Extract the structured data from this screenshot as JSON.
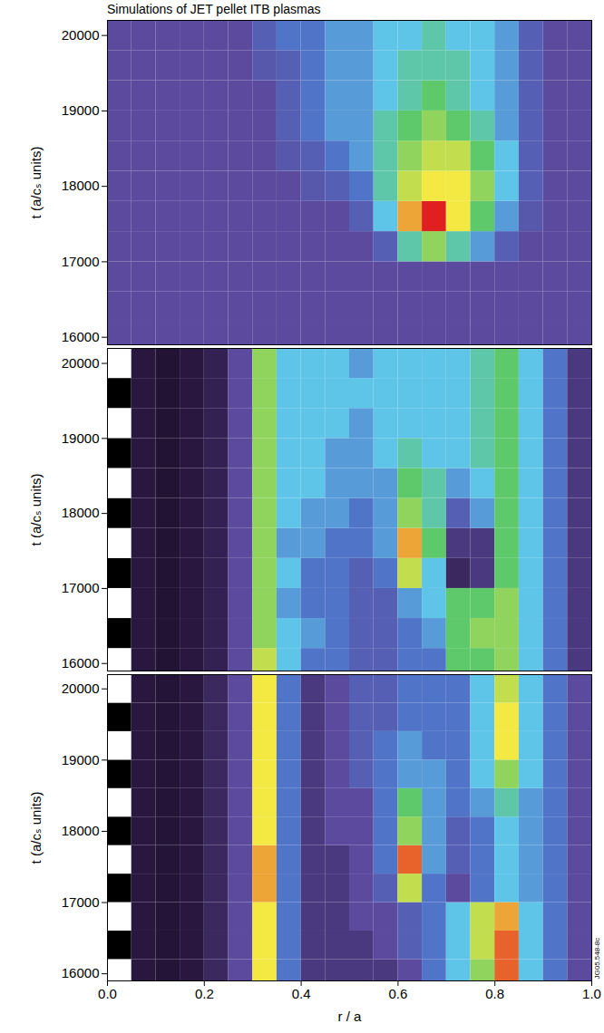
{
  "chart_data": [
    {
      "type": "heatmap",
      "title": "Simulations of JET pellet ITB plasmas",
      "ylabel": "t (a/cₛ units)",
      "xlim": [
        0,
        1
      ],
      "ylim": [
        15900,
        20200
      ],
      "yticks": [
        16000,
        17000,
        18000,
        19000,
        20000
      ],
      "tick_labels": "y",
      "zlim": [
        0,
        10
      ],
      "cells": {
        "r": [
          0.025,
          0.075,
          0.125,
          0.175,
          0.225,
          0.275,
          0.325,
          0.375,
          0.425,
          0.475,
          0.525,
          0.575,
          0.625,
          0.675,
          0.725,
          0.775,
          0.825,
          0.875,
          0.925,
          0.975
        ],
        "t": [
          16000,
          16400,
          16800,
          17200,
          17600,
          18000,
          18400,
          18800,
          19200,
          19600,
          20000
        ],
        "values": [
          [
            3,
            3,
            3,
            3,
            3,
            3,
            3,
            3,
            3,
            3,
            3,
            3,
            3,
            3,
            3,
            3,
            3,
            3,
            3,
            3
          ],
          [
            3,
            3,
            3,
            3,
            3,
            3,
            3,
            3,
            3,
            3,
            3,
            3,
            3,
            3,
            3,
            3,
            3,
            3,
            3,
            3
          ],
          [
            3,
            3,
            3,
            3,
            3,
            3,
            3,
            3,
            3,
            3,
            3,
            3,
            3,
            3,
            3,
            3,
            3,
            3,
            3,
            3
          ],
          [
            3,
            3,
            3,
            3,
            3,
            3,
            3,
            3,
            3,
            3,
            3,
            3.5,
            5.5,
            6.5,
            5.5,
            4.5,
            3.5,
            3,
            3,
            3
          ],
          [
            3,
            3,
            3,
            3,
            3,
            3,
            3,
            3,
            3,
            3,
            3.5,
            5,
            8,
            9,
            7.5,
            6,
            4.5,
            3.3,
            3,
            3
          ],
          [
            3,
            3,
            3,
            3,
            3,
            3,
            3,
            3,
            3.3,
            3.5,
            4,
            5.5,
            7,
            7.5,
            7.5,
            6.5,
            5,
            3.5,
            3,
            3
          ],
          [
            3,
            3,
            3,
            3,
            3,
            3,
            3,
            3.3,
            3.5,
            4,
            4.5,
            5.5,
            6.5,
            7,
            7,
            6,
            5,
            3.5,
            3,
            3
          ],
          [
            3,
            3,
            3,
            3,
            3,
            3,
            3,
            3.5,
            4,
            4.5,
            4.5,
            5.5,
            6,
            6.5,
            6,
            5.5,
            4.5,
            3.5,
            3,
            3
          ],
          [
            3,
            3,
            3,
            3,
            3,
            3,
            3,
            3.5,
            4,
            4.5,
            4.5,
            5,
            5.5,
            6,
            5.5,
            5,
            4.5,
            3.5,
            3,
            3
          ],
          [
            3,
            3,
            3,
            3,
            3,
            3,
            3.3,
            3.5,
            4,
            4.5,
            4.5,
            5,
            5.5,
            5.5,
            5.5,
            5,
            4.5,
            3.5,
            3,
            3
          ],
          [
            3,
            3,
            3,
            3,
            3,
            3,
            3.5,
            4,
            4,
            4.5,
            4.5,
            5,
            5,
            5.5,
            5,
            5,
            4.5,
            3.5,
            3,
            3
          ]
        ]
      }
    },
    {
      "type": "heatmap",
      "ylabel": "t (a/cₛ units)",
      "xlim": [
        0,
        1
      ],
      "ylim": [
        15900,
        20200
      ],
      "yticks": [
        16000,
        17000,
        18000,
        19000,
        20000
      ],
      "tick_labels": "y",
      "zlim": [
        0,
        10
      ],
      "cells": {
        "r": [
          0.025,
          0.075,
          0.125,
          0.175,
          0.225,
          0.275,
          0.325,
          0.375,
          0.425,
          0.475,
          0.525,
          0.575,
          0.625,
          0.675,
          0.725,
          0.775,
          0.825,
          0.875,
          0.925,
          0.975
        ],
        "t": [
          16000,
          16400,
          16800,
          17200,
          17600,
          18000,
          18400,
          18800,
          19200,
          19600,
          20000
        ],
        "values": [
          [
            10,
            1.5,
            1.2,
            1.5,
            1.8,
            3,
            7,
            5,
            4,
            4,
            3.5,
            3.5,
            4,
            4,
            6,
            6,
            6.5,
            5,
            4,
            2.5
          ],
          [
            0,
            1.5,
            1.2,
            1.5,
            1.8,
            3,
            6.5,
            5,
            4.5,
            4,
            3.5,
            3.5,
            4,
            4.5,
            6,
            6.5,
            6.5,
            5,
            4,
            2.5
          ],
          [
            10,
            1.5,
            1.2,
            1.5,
            1.8,
            3,
            6.5,
            4.5,
            4,
            4,
            3.5,
            3.5,
            4.5,
            5,
            6,
            6,
            6.5,
            5,
            4,
            2.5
          ],
          [
            0,
            1.5,
            1.2,
            1.5,
            1.8,
            3,
            6.5,
            5,
            4,
            4,
            3.5,
            4,
            7,
            5,
            2,
            2.5,
            6,
            5,
            4,
            2.5
          ],
          [
            10,
            1.5,
            1.2,
            1.5,
            1.8,
            3,
            6.5,
            4.5,
            4.5,
            4,
            4,
            4.5,
            8,
            6,
            2.5,
            2.5,
            6,
            5,
            4,
            2.5
          ],
          [
            0,
            1.5,
            1.2,
            1.5,
            1.8,
            3,
            6.5,
            5,
            4.5,
            4.5,
            4,
            4.5,
            6.5,
            5.5,
            3.5,
            4.5,
            6,
            5,
            4,
            2.5
          ],
          [
            10,
            1.5,
            1.2,
            1.5,
            1.8,
            3,
            6.5,
            5,
            5,
            4.5,
            4.5,
            4.5,
            6,
            5.5,
            4.5,
            5,
            6,
            5,
            4,
            2.5
          ],
          [
            0,
            1.5,
            1.2,
            1.5,
            1.8,
            3,
            6.5,
            5,
            5,
            4.5,
            4.5,
            5,
            5.5,
            5,
            5,
            5.5,
            6,
            5,
            4,
            2.5
          ],
          [
            10,
            1.5,
            1.2,
            1.5,
            1.8,
            3,
            6.5,
            5,
            5,
            5,
            4.5,
            5,
            5,
            5,
            5,
            5.5,
            6,
            5,
            4,
            2.5
          ],
          [
            0,
            1.5,
            1.2,
            1.5,
            1.8,
            3,
            6.5,
            5,
            5,
            5,
            5,
            5,
            5,
            5,
            5,
            5.5,
            6,
            5,
            4,
            2.5
          ],
          [
            10,
            1.5,
            1.2,
            1.5,
            1.8,
            3,
            6.5,
            5,
            5,
            5,
            4.5,
            5,
            5,
            5,
            5,
            5.5,
            6,
            5,
            4,
            2.5
          ]
        ]
      }
    },
    {
      "type": "heatmap",
      "ylabel": "t (a/cₛ units)",
      "xlabel": "r / a",
      "xlim": [
        0,
        1
      ],
      "ylim": [
        15900,
        20200
      ],
      "yticks": [
        16000,
        17000,
        18000,
        19000,
        20000
      ],
      "xticks": [
        {
          "value": 0,
          "label": "0.0"
        },
        0.2,
        0.4,
        0.6,
        0.8,
        {
          "value": 1,
          "label": "1.0"
        }
      ],
      "zlim": [
        0,
        10
      ],
      "annotations": [
        {
          "text": "JG05.548-8c"
        }
      ],
      "cells": {
        "r": [
          0.025,
          0.075,
          0.125,
          0.175,
          0.225,
          0.275,
          0.325,
          0.375,
          0.425,
          0.475,
          0.525,
          0.575,
          0.625,
          0.675,
          0.725,
          0.775,
          0.825,
          0.875,
          0.925,
          0.975
        ],
        "t": [
          16000,
          16400,
          16800,
          17200,
          17600,
          18000,
          18400,
          18800,
          19200,
          19600,
          20000
        ],
        "values": [
          [
            10,
            1.5,
            1.3,
            1.5,
            2,
            3,
            7.5,
            4,
            2.5,
            2.5,
            2.5,
            2.5,
            3,
            4,
            5,
            6.5,
            8.5,
            5,
            4,
            3
          ],
          [
            0,
            1.5,
            1.3,
            1.5,
            2,
            3,
            7.5,
            4,
            2.5,
            2.5,
            2.5,
            3,
            3.5,
            4,
            5,
            7,
            8.5,
            5,
            4,
            3
          ],
          [
            10,
            1.5,
            1.3,
            1.5,
            2,
            3,
            7.5,
            4,
            2.5,
            2.5,
            3,
            3,
            3.5,
            4,
            5,
            7,
            8,
            5,
            4,
            3
          ],
          [
            0,
            1.5,
            1.3,
            1.5,
            2,
            3,
            8,
            4,
            2.5,
            2.5,
            3,
            3.5,
            7,
            4,
            3,
            4,
            5,
            4.5,
            4,
            3
          ],
          [
            10,
            1.5,
            1.3,
            1.5,
            2,
            3,
            8,
            4,
            2.5,
            2.5,
            3,
            4,
            8.5,
            4.5,
            3.5,
            4,
            5,
            4.5,
            4,
            3
          ],
          [
            0,
            1.5,
            1.3,
            1.5,
            2,
            3,
            7.5,
            4,
            2.5,
            3,
            3,
            4,
            6.5,
            4.5,
            3.5,
            4,
            5,
            4.5,
            4,
            3
          ],
          [
            10,
            1.5,
            1.3,
            1.5,
            2,
            3,
            7.5,
            4,
            2.5,
            3,
            3,
            4,
            6,
            4.5,
            4,
            4.5,
            5.5,
            4.5,
            4,
            3
          ],
          [
            0,
            1.5,
            1.3,
            1.5,
            2,
            3,
            7.5,
            4,
            2.5,
            3,
            3.5,
            4,
            4.5,
            4.5,
            4,
            5,
            6.5,
            5,
            4,
            3
          ],
          [
            10,
            1.5,
            1.3,
            1.5,
            2,
            3,
            7.5,
            4,
            2.5,
            3,
            3.5,
            4,
            4.5,
            4,
            4,
            5,
            7.5,
            5,
            4,
            3
          ],
          [
            0,
            1.5,
            1.3,
            1.5,
            2,
            3,
            7.5,
            4,
            2.5,
            3,
            3.5,
            3.5,
            4,
            4,
            4,
            5,
            7.5,
            5,
            4,
            3
          ],
          [
            10,
            1.5,
            1.3,
            1.5,
            2,
            3,
            7.5,
            4,
            2.5,
            3,
            3.5,
            3.5,
            4,
            4,
            4,
            5,
            7,
            5,
            4,
            3
          ]
        ]
      }
    }
  ]
}
